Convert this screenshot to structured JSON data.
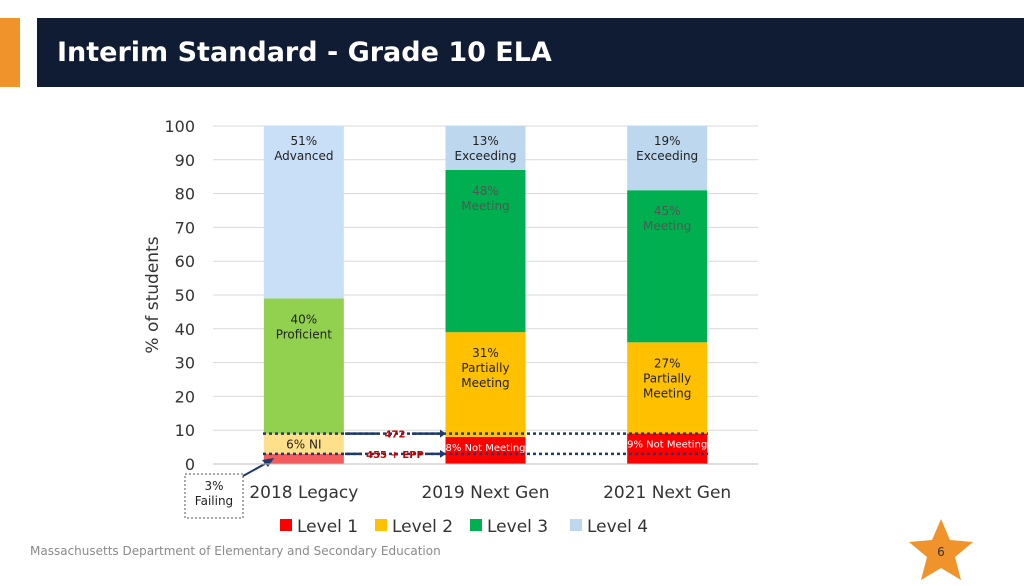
{
  "header": {
    "title": "Interim Standard - Grade 10 ELA",
    "accent_color": "#f0932b",
    "background_color": "#0f1c33"
  },
  "footer": {
    "organization": "Massachusetts Department of Elementary and Secondary Education"
  },
  "page_badge": {
    "number": "6",
    "icon": "star-icon",
    "color": "#f0932b"
  },
  "chart_data": {
    "type": "bar",
    "stacked": true,
    "title": "",
    "xlabel": "",
    "ylabel": "% of students",
    "ylim": [
      0,
      100
    ],
    "yticks": [
      0,
      10,
      20,
      30,
      40,
      50,
      60,
      70,
      80,
      90,
      100
    ],
    "grid": true,
    "legend_position": "bottom",
    "categories": [
      "2018 Legacy",
      "2019 Next Gen",
      "2021 Next Gen"
    ],
    "series": [
      {
        "name": "Level 1",
        "color": "#ff0000",
        "values": [
          3,
          8,
          9
        ]
      },
      {
        "name": "Level 2",
        "color": "#ffc000",
        "values": [
          6,
          31,
          27
        ]
      },
      {
        "name": "Level 3",
        "color": "#00b050",
        "values": [
          40,
          48,
          45
        ]
      },
      {
        "name": "Level 4",
        "color": "#bdd7ee",
        "values": [
          51,
          13,
          19
        ]
      }
    ],
    "segment_colors_2018": [
      "#f25c5c",
      "#ffe08a",
      "#92d050",
      "#c9def7"
    ],
    "segment_labels": [
      [
        "3%\nFailing",
        "6% NI",
        "40%\nProficient",
        "51%\nAdvanced"
      ],
      [
        "8% Not Meeting",
        "31%\nPartially\nMeeting",
        "48%\nMeeting",
        "13%\nExceeding"
      ],
      [
        "9% Not Meeting",
        "27%\nPartially\nMeeting",
        "45%\nMeeting",
        "19%\nExceeding"
      ]
    ],
    "annotations": [
      {
        "text": "472",
        "y": 9,
        "color": "#c00000"
      },
      {
        "text": "455 + EPP",
        "y": 3,
        "color": "#c00000"
      }
    ]
  }
}
